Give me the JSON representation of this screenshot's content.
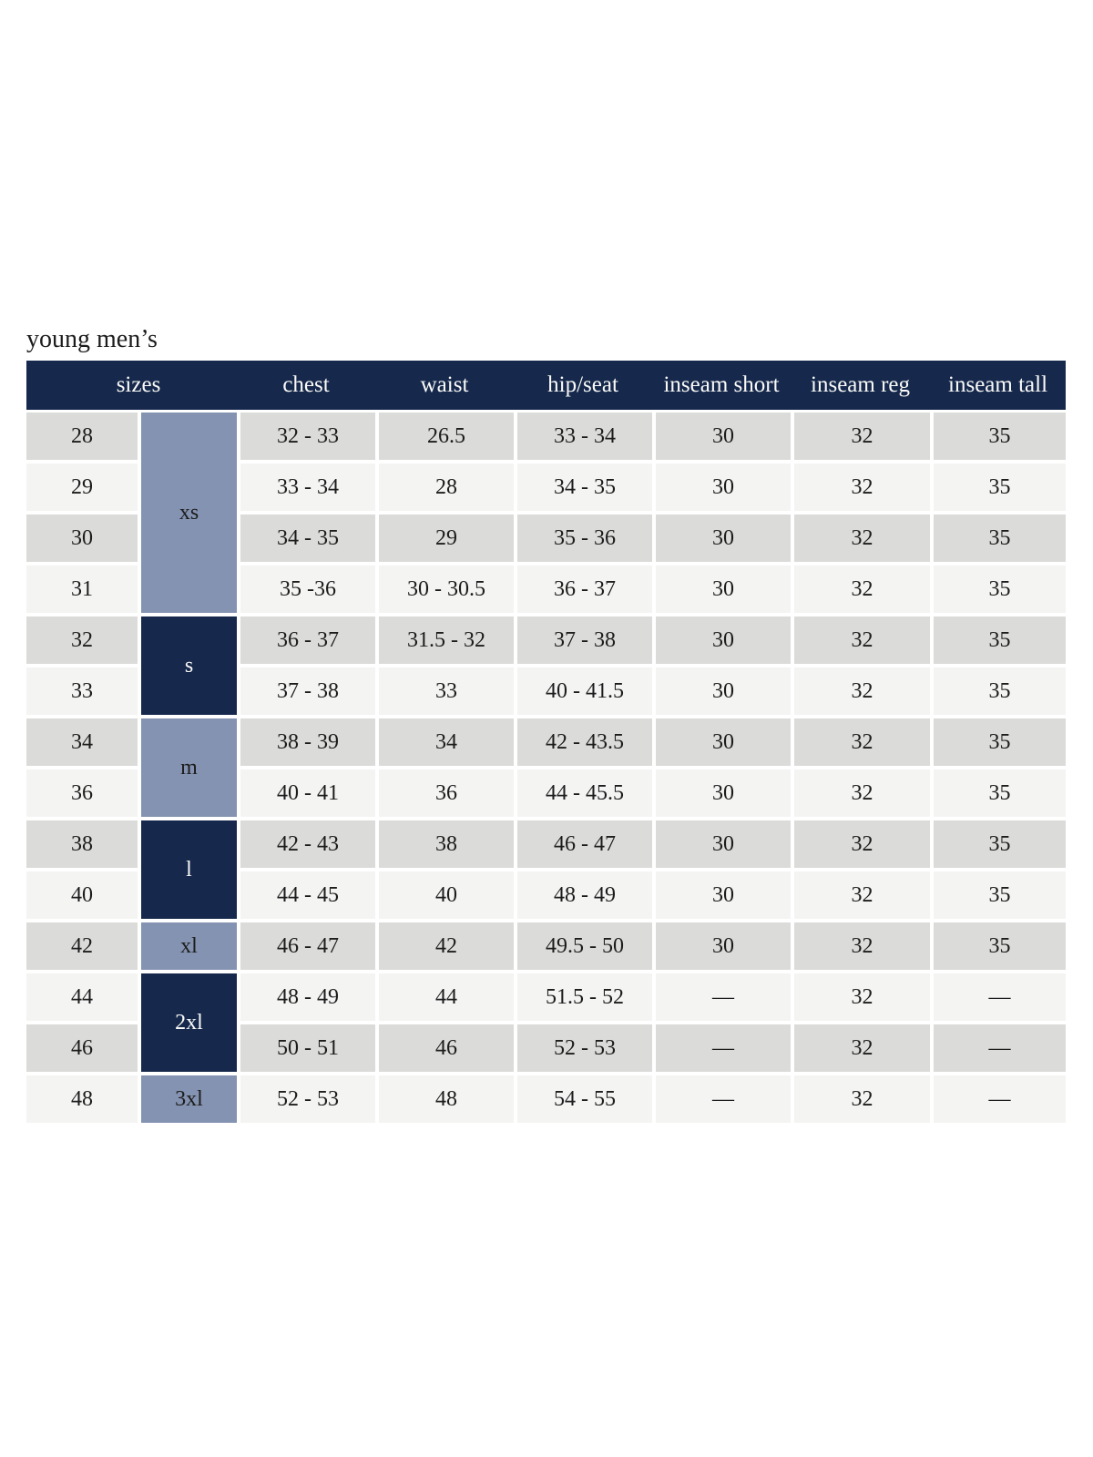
{
  "page": {
    "title": "young men’s"
  },
  "colors": {
    "navy": "#16294c",
    "slate": "#8493b1",
    "row_gray": "#dbdbd9",
    "row_light": "#f4f4f3",
    "text": "#1c1c1c",
    "header_text": "#fbfaf8",
    "background": "#ffffff"
  },
  "table": {
    "columns": [
      "sizes",
      "chest",
      "waist",
      "hip/seat",
      "inseam short",
      "inseam reg",
      "inseam tall"
    ],
    "groups": [
      {
        "label": "xs",
        "rows": 4,
        "tone": "slate"
      },
      {
        "label": "s",
        "rows": 2,
        "tone": "navy"
      },
      {
        "label": "m",
        "rows": 2,
        "tone": "slate"
      },
      {
        "label": "l",
        "rows": 2,
        "tone": "navy"
      },
      {
        "label": "xl",
        "rows": 1,
        "tone": "slate"
      },
      {
        "label": "2xl",
        "rows": 2,
        "tone": "navy"
      },
      {
        "label": "3xl",
        "rows": 1,
        "tone": "slate"
      }
    ],
    "rows": [
      {
        "size": "28",
        "chest": "32 - 33",
        "waist": "26.5",
        "hip_seat": "33 - 34",
        "inseam_short": "30",
        "inseam_reg": "32",
        "inseam_tall": "35"
      },
      {
        "size": "29",
        "chest": "33 - 34",
        "waist": "28",
        "hip_seat": "34 - 35",
        "inseam_short": "30",
        "inseam_reg": "32",
        "inseam_tall": "35"
      },
      {
        "size": "30",
        "chest": "34 - 35",
        "waist": "29",
        "hip_seat": "35 - 36",
        "inseam_short": "30",
        "inseam_reg": "32",
        "inseam_tall": "35"
      },
      {
        "size": "31",
        "chest": "35 -36",
        "waist": "30 - 30.5",
        "hip_seat": "36 - 37",
        "inseam_short": "30",
        "inseam_reg": "32",
        "inseam_tall": "35"
      },
      {
        "size": "32",
        "chest": "36 - 37",
        "waist": "31.5 - 32",
        "hip_seat": "37 - 38",
        "inseam_short": "30",
        "inseam_reg": "32",
        "inseam_tall": "35"
      },
      {
        "size": "33",
        "chest": "37 - 38",
        "waist": "33",
        "hip_seat": "40 - 41.5",
        "inseam_short": "30",
        "inseam_reg": "32",
        "inseam_tall": "35"
      },
      {
        "size": "34",
        "chest": "38 - 39",
        "waist": "34",
        "hip_seat": "42 - 43.5",
        "inseam_short": "30",
        "inseam_reg": "32",
        "inseam_tall": "35"
      },
      {
        "size": "36",
        "chest": "40 - 41",
        "waist": "36",
        "hip_seat": "44 - 45.5",
        "inseam_short": "30",
        "inseam_reg": "32",
        "inseam_tall": "35"
      },
      {
        "size": "38",
        "chest": "42 - 43",
        "waist": "38",
        "hip_seat": "46 - 47",
        "inseam_short": "30",
        "inseam_reg": "32",
        "inseam_tall": "35"
      },
      {
        "size": "40",
        "chest": "44 - 45",
        "waist": "40",
        "hip_seat": "48 - 49",
        "inseam_short": "30",
        "inseam_reg": "32",
        "inseam_tall": "35"
      },
      {
        "size": "42",
        "chest": "46 - 47",
        "waist": "42",
        "hip_seat": "49.5 - 50",
        "inseam_short": "30",
        "inseam_reg": "32",
        "inseam_tall": "35"
      },
      {
        "size": "44",
        "chest": "48 - 49",
        "waist": "44",
        "hip_seat": "51.5 - 52",
        "inseam_short": "—",
        "inseam_reg": "32",
        "inseam_tall": "—"
      },
      {
        "size": "46",
        "chest": "50 - 51",
        "waist": "46",
        "hip_seat": "52 - 53",
        "inseam_short": "—",
        "inseam_reg": "32",
        "inseam_tall": "—"
      },
      {
        "size": "48",
        "chest": "52 - 53",
        "waist": "48",
        "hip_seat": "54 - 55",
        "inseam_short": "—",
        "inseam_reg": "32",
        "inseam_tall": "—"
      }
    ]
  }
}
